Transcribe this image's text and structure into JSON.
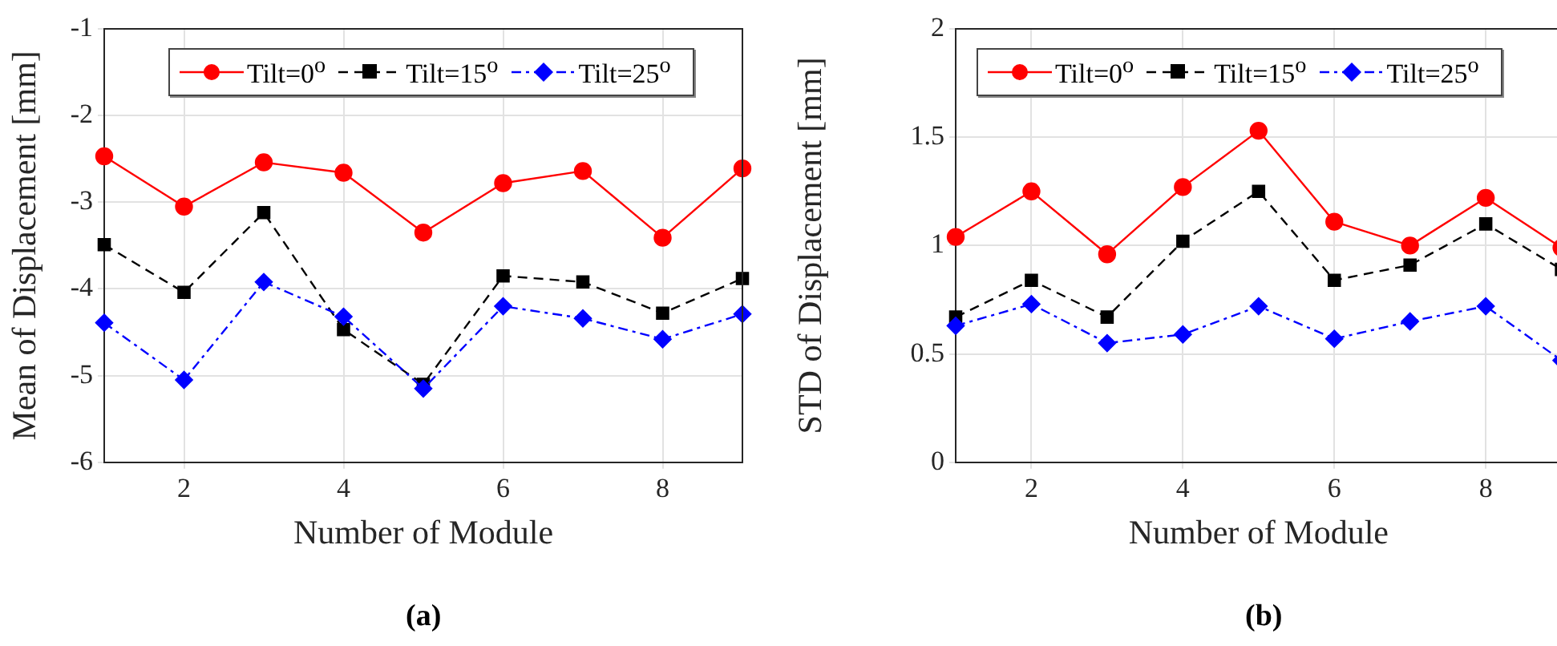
{
  "chart_data": [
    {
      "type": "line",
      "xlabel": "Number of Module",
      "ylabel": "Mean of Displacement [mm]",
      "x": [
        1,
        2,
        3,
        4,
        5,
        6,
        7,
        8,
        9
      ],
      "xlim": [
        1,
        9
      ],
      "xticks": [
        2,
        4,
        6,
        8
      ],
      "ylim": [
        -6,
        -1
      ],
      "yticks": [
        -6,
        -5,
        -4,
        -3,
        -2,
        -1
      ],
      "grid": true,
      "legend": "top",
      "annotations": [
        "(a)"
      ],
      "series": [
        {
          "name": "Tilt=0$^{o}$",
          "color": "#ff0000",
          "marker": "circle",
          "line_style": "solid",
          "values": [
            -2.47,
            -3.05,
            -2.54,
            -2.66,
            -3.35,
            -2.78,
            -2.64,
            -3.41,
            -2.61
          ]
        },
        {
          "name": "Tilt=15$^{o}$",
          "color": "#000000",
          "marker": "square",
          "line_style": "dashed",
          "values": [
            -3.49,
            -4.04,
            -3.12,
            -4.47,
            -5.1,
            -3.85,
            -3.92,
            -4.28,
            -3.88
          ]
        },
        {
          "name": "Tilt=25$^{o}$",
          "color": "#0000ff",
          "marker": "diamond",
          "line_style": "dashdot",
          "values": [
            -4.39,
            -5.05,
            -3.92,
            -4.32,
            -5.15,
            -4.2,
            -4.34,
            -4.58,
            -4.29
          ]
        }
      ]
    },
    {
      "type": "line",
      "xlabel": "Number of Module",
      "ylabel": "STD of Displacement [mm]",
      "x": [
        1,
        2,
        3,
        4,
        5,
        6,
        7,
        8,
        9
      ],
      "xlim": [
        1,
        9
      ],
      "xticks": [
        2,
        4,
        6,
        8
      ],
      "ylim": [
        0,
        2
      ],
      "yticks": [
        0,
        0.5,
        1,
        1.5,
        2
      ],
      "grid": true,
      "legend": "top",
      "annotations": [
        "(b)"
      ],
      "series": [
        {
          "name": "Tilt=0$^{o}$",
          "color": "#ff0000",
          "marker": "circle",
          "line_style": "solid",
          "values": [
            1.04,
            1.25,
            0.96,
            1.27,
            1.53,
            1.11,
            1.0,
            1.22,
            0.99
          ]
        },
        {
          "name": "Tilt=15$^{o}$",
          "color": "#000000",
          "marker": "square",
          "line_style": "dashed",
          "values": [
            0.67,
            0.84,
            0.67,
            1.02,
            1.25,
            0.84,
            0.91,
            1.1,
            0.89
          ]
        },
        {
          "name": "Tilt=25$^{o}$",
          "color": "#0000ff",
          "marker": "diamond",
          "line_style": "dashdot",
          "values": [
            0.63,
            0.73,
            0.55,
            0.59,
            0.72,
            0.57,
            0.65,
            0.72,
            0.47
          ]
        }
      ]
    }
  ]
}
